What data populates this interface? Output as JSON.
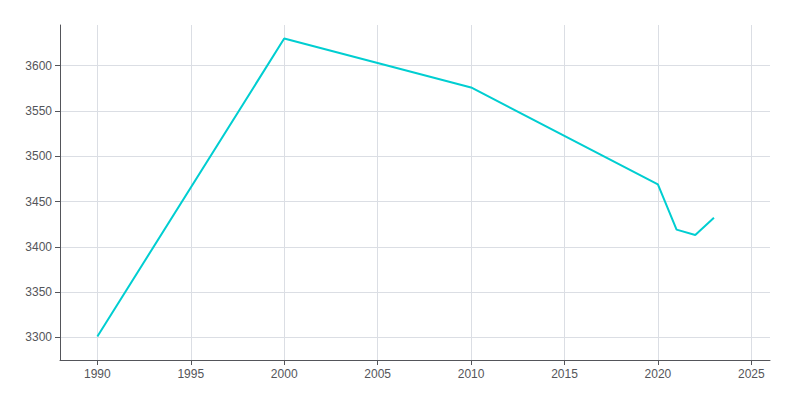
{
  "chart_data": {
    "type": "line",
    "x": [
      1990,
      2000,
      2010,
      2020,
      2021,
      2022,
      2023
    ],
    "values": [
      3301,
      3630,
      3576,
      3469,
      3419,
      3413,
      3432
    ],
    "color": "#00CED1",
    "xlim": [
      1988,
      2026
    ],
    "ylim": [
      3275,
      3645
    ],
    "xticks": [
      1990,
      1995,
      2000,
      2005,
      2010,
      2015,
      2020,
      2025
    ],
    "yticks": [
      3300,
      3350,
      3400,
      3450,
      3500,
      3550,
      3600
    ],
    "grid": true
  }
}
